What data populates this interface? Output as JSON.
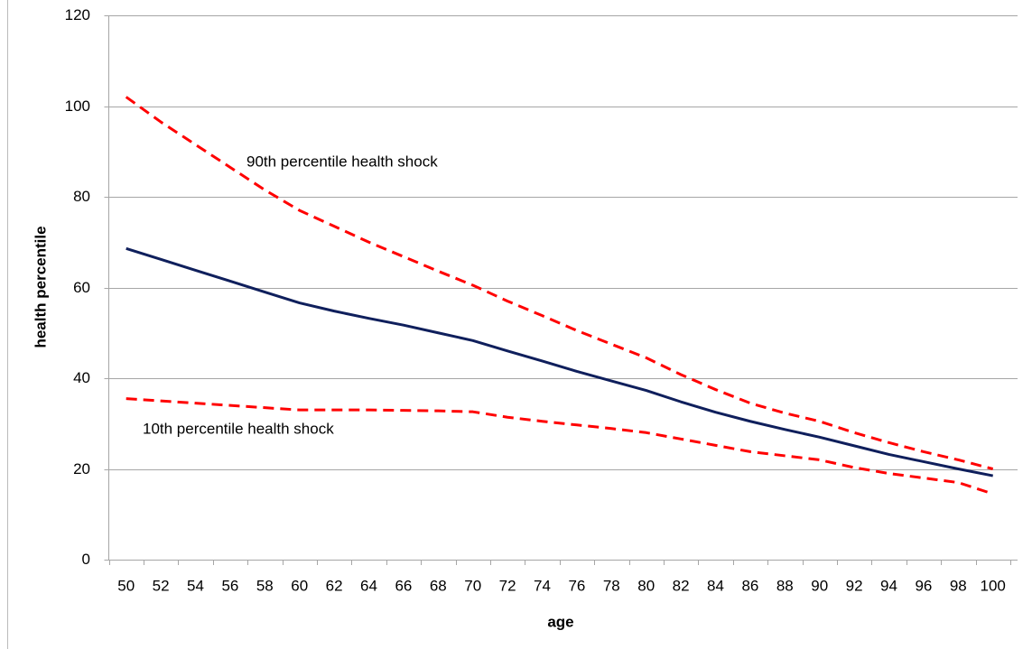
{
  "chart_data": {
    "type": "line",
    "x_label": "age",
    "y_label": "health percentile",
    "categories": [
      50,
      52,
      54,
      56,
      58,
      60,
      62,
      64,
      66,
      68,
      70,
      72,
      74,
      76,
      78,
      80,
      82,
      84,
      86,
      88,
      90,
      92,
      94,
      96,
      98,
      100
    ],
    "series": [
      {
        "color": "#0f1f5c",
        "dashed": false,
        "values": [
          68.6,
          66.2,
          63.8,
          61.4,
          59.0,
          56.6,
          54.8,
          53.2,
          51.7,
          50.0,
          48.3,
          46.0,
          43.8,
          41.5,
          39.4,
          37.3,
          34.8,
          32.5,
          30.5,
          28.7,
          27.0,
          25.1,
          23.2,
          21.6,
          20.0,
          18.5
        ]
      },
      {
        "name": "90th percentile health shock",
        "color": "#ff0000",
        "dashed": true,
        "values": [
          102,
          96.5,
          91.5,
          86.5,
          81.5,
          77,
          73.5,
          70,
          66.8,
          63.6,
          60.5,
          57,
          53.8,
          50.5,
          47.5,
          44.5,
          40.8,
          37.5,
          34.5,
          32.3,
          30.5,
          28,
          25.8,
          23.8,
          22,
          20
        ]
      },
      {
        "name": "10th percentile health shock",
        "color": "#ff0000",
        "dashed": true,
        "values": [
          35.5,
          35,
          34.5,
          34,
          33.5,
          33,
          33,
          33,
          32.9,
          32.8,
          32.6,
          31.4,
          30.5,
          29.7,
          28.9,
          28,
          26.6,
          25.2,
          23.8,
          22.9,
          22,
          20.3,
          19,
          18,
          17,
          14.5
        ]
      }
    ],
    "ylim": [
      0,
      120
    ],
    "yticks": [
      0,
      20,
      40,
      60,
      80,
      100,
      120
    ],
    "grid": true
  }
}
